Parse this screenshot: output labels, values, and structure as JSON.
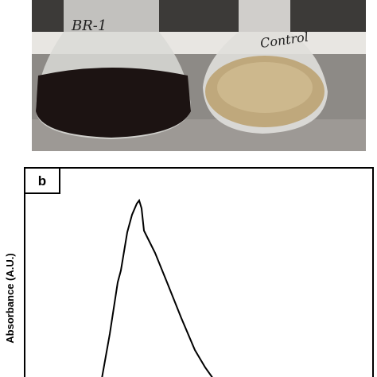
{
  "photo": {
    "labels": [
      "BR-1",
      "Control"
    ]
  },
  "panel_b": {
    "label": "b",
    "y_label": "Absorbance (A.U.)"
  }
}
